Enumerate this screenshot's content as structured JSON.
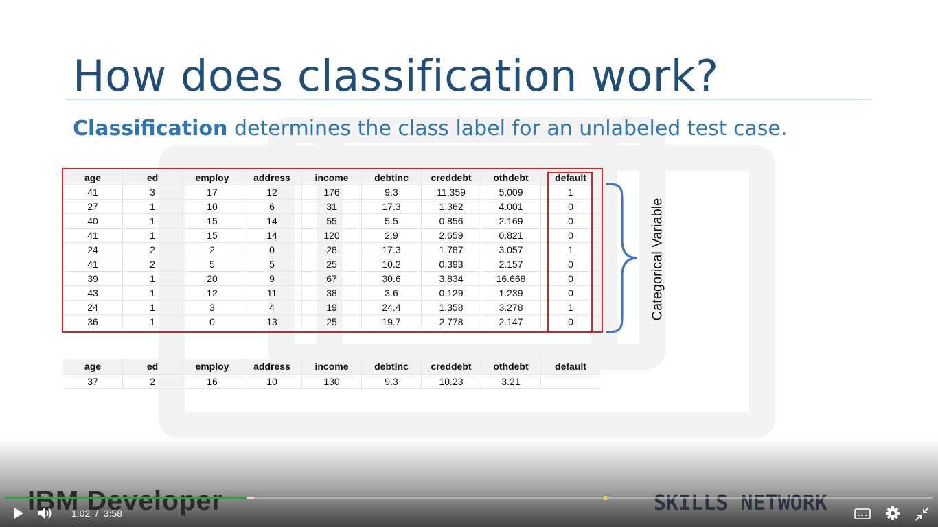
{
  "slide": {
    "title": "How does classification work?",
    "subtitle_bold": "Classification",
    "subtitle_rest": " determines the class label for an unlabeled test case.",
    "brace_label": "Categorical Variable"
  },
  "columns": [
    "age",
    "ed",
    "employ",
    "address",
    "income",
    "debtinc",
    "creddebt",
    "othdebt",
    "default"
  ],
  "train_rows": [
    [
      "41",
      "3",
      "17",
      "12",
      "176",
      "9.3",
      "11.359",
      "5.009",
      "1"
    ],
    [
      "27",
      "1",
      "10",
      "6",
      "31",
      "17.3",
      "1.362",
      "4.001",
      "0"
    ],
    [
      "40",
      "1",
      "15",
      "14",
      "55",
      "5.5",
      "0.856",
      "2.169",
      "0"
    ],
    [
      "41",
      "1",
      "15",
      "14",
      "120",
      "2.9",
      "2.659",
      "0.821",
      "0"
    ],
    [
      "24",
      "2",
      "2",
      "0",
      "28",
      "17.3",
      "1.787",
      "3.057",
      "1"
    ],
    [
      "41",
      "2",
      "5",
      "5",
      "25",
      "10.2",
      "0.393",
      "2.157",
      "0"
    ],
    [
      "39",
      "1",
      "20",
      "9",
      "67",
      "30.6",
      "3.834",
      "16.668",
      "0"
    ],
    [
      "43",
      "1",
      "12",
      "11",
      "38",
      "3.6",
      "0.129",
      "1.239",
      "0"
    ],
    [
      "24",
      "1",
      "3",
      "4",
      "19",
      "24.4",
      "1.358",
      "3.278",
      "1"
    ],
    [
      "36",
      "1",
      "0",
      "13",
      "25",
      "19.7",
      "2.778",
      "2.147",
      "0"
    ]
  ],
  "test_row": [
    "37",
    "2",
    "16",
    "10",
    "130",
    "9.3",
    "10.23",
    "3.21",
    ""
  ],
  "player": {
    "current_time": "1:02",
    "separator": "/",
    "duration": "3:58",
    "progress_fraction": 0.26,
    "brand_left": "IBM Developer",
    "brand_right": "SKILLS NETWORK",
    "icons": [
      "play-icon",
      "volume-icon",
      "captions-icon",
      "gear-icon",
      "exit-fullscreen-icon"
    ]
  },
  "colors": {
    "title": "#1f4e79",
    "subtitle": "#2e75b6",
    "highlight_box": "#e02020",
    "brace": "#4472c4",
    "progress_played": "#1faa3a"
  }
}
